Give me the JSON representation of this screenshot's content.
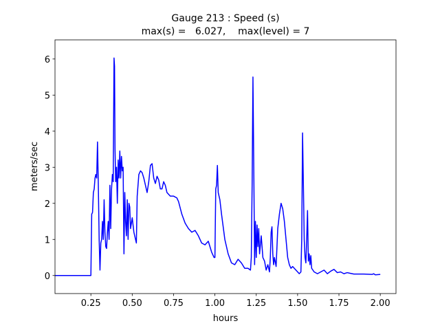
{
  "chart_data": {
    "type": "line",
    "title": "Gauge 213 : Speed (s)",
    "subtitle": "max(s) =   6.027,    max(level) = 7",
    "x_label": "hours",
    "y_label": "meters/sec",
    "x": [
      0.033,
      0.25,
      0.255,
      0.26,
      0.265,
      0.27,
      0.275,
      0.28,
      0.285,
      0.29,
      0.295,
      0.3,
      0.305,
      0.31,
      0.315,
      0.32,
      0.325,
      0.33,
      0.335,
      0.34,
      0.345,
      0.35,
      0.355,
      0.36,
      0.365,
      0.37,
      0.375,
      0.38,
      0.385,
      0.39,
      0.393,
      0.396,
      0.4,
      0.405,
      0.41,
      0.415,
      0.42,
      0.425,
      0.43,
      0.435,
      0.44,
      0.445,
      0.45,
      0.455,
      0.46,
      0.465,
      0.47,
      0.475,
      0.48,
      0.485,
      0.49,
      0.5,
      0.51,
      0.52,
      0.525,
      0.53,
      0.54,
      0.55,
      0.56,
      0.57,
      0.58,
      0.59,
      0.6,
      0.61,
      0.62,
      0.63,
      0.64,
      0.65,
      0.66,
      0.67,
      0.68,
      0.69,
      0.7,
      0.71,
      0.72,
      0.73,
      0.75,
      0.77,
      0.78,
      0.8,
      0.82,
      0.84,
      0.86,
      0.88,
      0.9,
      0.92,
      0.94,
      0.96,
      0.98,
      0.995,
      1.0,
      1.005,
      1.01,
      1.015,
      1.02,
      1.03,
      1.04,
      1.06,
      1.08,
      1.1,
      1.12,
      1.14,
      1.16,
      1.18,
      1.2,
      1.215,
      1.22,
      1.225,
      1.23,
      1.235,
      1.24,
      1.245,
      1.25,
      1.255,
      1.26,
      1.265,
      1.27,
      1.28,
      1.29,
      1.3,
      1.31,
      1.32,
      1.33,
      1.335,
      1.34,
      1.345,
      1.35,
      1.355,
      1.36,
      1.37,
      1.38,
      1.39,
      1.4,
      1.41,
      1.42,
      1.43,
      1.44,
      1.45,
      1.46,
      1.47,
      1.49,
      1.51,
      1.52,
      1.525,
      1.53,
      1.535,
      1.54,
      1.545,
      1.55,
      1.555,
      1.56,
      1.565,
      1.57,
      1.575,
      1.58,
      1.585,
      1.6,
      1.62,
      1.64,
      1.66,
      1.67,
      1.68,
      1.7,
      1.72,
      1.74,
      1.76,
      1.78,
      1.8,
      1.82,
      1.84,
      1.9,
      1.95,
      1.96,
      1.97,
      2.0
    ],
    "series": [
      {
        "name": "s",
        "color": "#0000ff",
        "values": [
          0,
          0,
          1.7,
          1.75,
          2.3,
          2.4,
          2.7,
          2.8,
          2.7,
          3.7,
          2.5,
          1.0,
          0.15,
          0.9,
          1.0,
          1.5,
          1.0,
          2.1,
          1.2,
          0.8,
          0.75,
          1.2,
          1.5,
          1.0,
          2.5,
          1.3,
          2.4,
          2.8,
          2.6,
          6.027,
          5.8,
          3.5,
          2.6,
          3.0,
          2.0,
          3.2,
          2.7,
          3.45,
          2.7,
          3.3,
          2.9,
          3.0,
          0.6,
          2.3,
          1.5,
          1.1,
          2.1,
          1.0,
          2.0,
          1.9,
          1.3,
          1.6,
          1.2,
          1.0,
          0.9,
          2.2,
          2.8,
          2.9,
          2.85,
          2.7,
          2.5,
          2.3,
          2.6,
          3.05,
          3.1,
          2.7,
          2.55,
          2.75,
          2.65,
          2.4,
          2.4,
          2.6,
          2.5,
          2.3,
          2.25,
          2.2,
          2.2,
          2.15,
          2.05,
          1.7,
          1.45,
          1.3,
          1.2,
          1.25,
          1.1,
          0.9,
          0.85,
          0.95,
          0.65,
          0.5,
          0.5,
          2.4,
          2.5,
          3.05,
          2.3,
          2.1,
          1.7,
          1.0,
          0.6,
          0.35,
          0.3,
          0.45,
          0.35,
          0.2,
          0.2,
          0.15,
          0.5,
          2.5,
          5.5,
          3.0,
          0.3,
          1.5,
          0.5,
          1.4,
          0.8,
          1.3,
          0.6,
          1.1,
          0.5,
          0.4,
          0.15,
          0.3,
          0.1,
          0.5,
          1.2,
          1.35,
          0.6,
          0.3,
          0.5,
          0.25,
          1.3,
          1.7,
          2.0,
          1.85,
          1.5,
          1.0,
          0.5,
          0.3,
          0.2,
          0.25,
          0.15,
          0.05,
          0.1,
          1.0,
          3.95,
          2.5,
          1.0,
          0.5,
          0.35,
          1.0,
          1.8,
          0.4,
          0.6,
          0.3,
          0.55,
          0.2,
          0.1,
          0.05,
          0.1,
          0.15,
          0.1,
          0.05,
          0.12,
          0.17,
          0.08,
          0.1,
          0.05,
          0.08,
          0.06,
          0.04,
          0.04,
          0.03,
          0.05,
          0.02,
          0.03
        ]
      }
    ],
    "xlim": [
      0.033,
      2.095
    ],
    "ylim": [
      -0.5,
      6.53
    ],
    "xticks": [
      0.25,
      {
        "value": 0.5,
        "label": "0.50"
      },
      0.75,
      {
        "value": 1.0,
        "label": "1.00"
      },
      1.25,
      {
        "value": 1.5,
        "label": "1.50"
      },
      1.75,
      {
        "value": 2.0,
        "label": "2.00"
      }
    ],
    "yticks": [
      0,
      1,
      2,
      3,
      4,
      5,
      6
    ],
    "grid": false
  }
}
